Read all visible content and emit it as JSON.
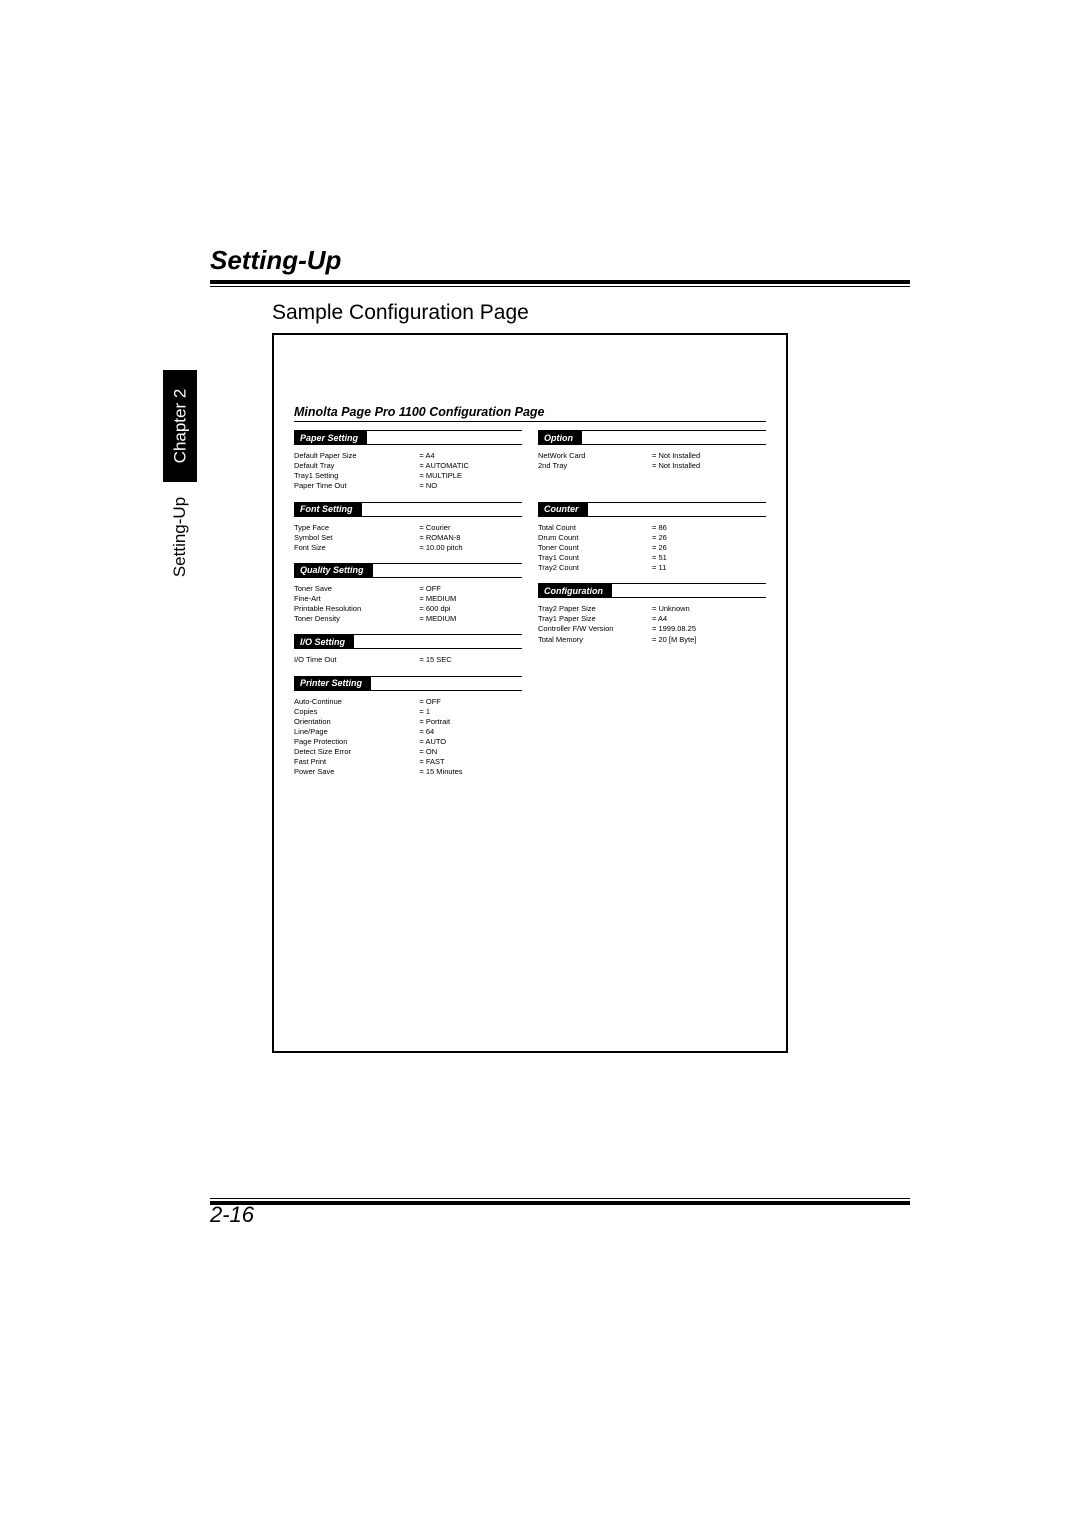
{
  "header": {
    "section_title": "Setting-Up",
    "sub_title": "Sample Configuration Page"
  },
  "sidebar": {
    "chapter_label": "Chapter 2",
    "section_label": "Setting-Up"
  },
  "config": {
    "title": "Minolta Page Pro 1100 Configuration Page",
    "left": [
      {
        "header": "Paper Setting",
        "rows": [
          {
            "k": "Default Paper Size",
            "v": "= A4"
          },
          {
            "k": "Default Tray",
            "v": "= AUTOMATIC"
          },
          {
            "k": "Tray1 Setting",
            "v": "= MULTIPLE"
          },
          {
            "k": "Paper Time Out",
            "v": "= NO"
          }
        ]
      },
      {
        "header": "Font Setting",
        "rows": [
          {
            "k": "Type Face",
            "v": "= Courier"
          },
          {
            "k": "Symbol Set",
            "v": "= ROMAN-8"
          },
          {
            "k": "Font Size",
            "v": "= 10.00 pitch"
          }
        ]
      },
      {
        "header": "Quality Setting",
        "rows": [
          {
            "k": "Toner Save",
            "v": "= OFF"
          },
          {
            "k": "Fine-Art",
            "v": "= MEDIUM"
          },
          {
            "k": "Printable Resolution",
            "v": "= 600 dpi"
          },
          {
            "k": "Toner Density",
            "v": "= MEDIUM"
          }
        ]
      },
      {
        "header": "I/O Setting",
        "rows": [
          {
            "k": "I/O Time Out",
            "v": "= 15 SEC"
          }
        ]
      },
      {
        "header": "Printer Setting",
        "rows": [
          {
            "k": "Auto-Continue",
            "v": "= OFF"
          },
          {
            "k": "Copies",
            "v": "= 1"
          },
          {
            "k": "Orientation",
            "v": "= Portrait"
          },
          {
            "k": "Line/Page",
            "v": "= 64"
          },
          {
            "k": "Page Protection",
            "v": "= AUTO"
          },
          {
            "k": "Detect Size Error",
            "v": "= ON"
          },
          {
            "k": "Fast Print",
            "v": "= FAST"
          },
          {
            "k": "Power Save",
            "v": "= 15 Minutes"
          }
        ]
      }
    ],
    "right": [
      {
        "header": "Option",
        "rows": [
          {
            "k": "NetWork Card",
            "v": "= Not Installed"
          },
          {
            "k": "2nd Tray",
            "v": "= Not Installed"
          }
        ],
        "pad_rows": 2
      },
      {
        "header": "Counter",
        "rows": [
          {
            "k": "Total Count",
            "v": "= 86"
          },
          {
            "k": "Drum Count",
            "v": "= 26"
          },
          {
            "k": "Toner Count",
            "v": "= 26"
          },
          {
            "k": "Tray1 Count",
            "v": "= 51"
          },
          {
            "k": "Tray2 Count",
            "v": "= 11"
          }
        ]
      },
      {
        "header": "Configuration",
        "rows": [
          {
            "k": "Tray2 Paper Size",
            "v": "= Unknown"
          },
          {
            "k": "Tray1 Paper Size",
            "v": "= A4"
          },
          {
            "k": "Controller F/W Version",
            "v": "= 1999.08.25"
          },
          {
            "k": "Total Memory",
            "v": "= 20 [M Byte]"
          }
        ]
      }
    ]
  },
  "footer": {
    "page_number": "2-16"
  }
}
